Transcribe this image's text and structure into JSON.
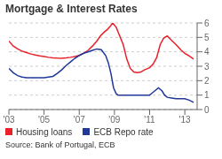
{
  "chart_data": {
    "type": "line",
    "title": "Mortgage & Interest Rates",
    "annotations": [
      "Source: Bank of Portugal, ECB"
    ],
    "xlim": [
      2003,
      2013.7
    ],
    "xticks": [
      {
        "value": 2003,
        "label": "'03"
      },
      {
        "value": 2005,
        "label": "'05"
      },
      {
        "value": 2007,
        "label": "'07"
      },
      {
        "value": 2009,
        "label": "'09"
      },
      {
        "value": 2011,
        "label": "'11"
      },
      {
        "value": 2013,
        "label": "'13"
      }
    ],
    "ylim": [
      0,
      6
    ],
    "yticks": [
      0,
      1,
      2,
      3,
      4,
      5,
      6
    ],
    "grid": true,
    "legend": "bottom",
    "series": [
      {
        "name": "Housing loans",
        "color": "#e8212a",
        "x": [
          2003.0,
          2003.25,
          2003.5,
          2003.75,
          2004.0,
          2004.25,
          2004.5,
          2004.75,
          2005.0,
          2005.25,
          2005.5,
          2005.75,
          2006.0,
          2006.25,
          2006.5,
          2006.75,
          2007.0,
          2007.25,
          2007.5,
          2007.75,
          2008.0,
          2008.2,
          2008.4,
          2008.6,
          2008.75,
          2008.9,
          2009.1,
          2009.3,
          2009.5,
          2009.7,
          2009.9,
          2010.1,
          2010.3,
          2010.5,
          2010.7,
          2011.0,
          2011.2,
          2011.4,
          2011.6,
          2011.8,
          2012.0,
          2012.2,
          2012.5,
          2012.8,
          2013.0,
          2013.2,
          2013.5
        ],
        "values": [
          4.75,
          4.4,
          4.2,
          4.05,
          3.95,
          3.85,
          3.78,
          3.72,
          3.68,
          3.62,
          3.58,
          3.56,
          3.55,
          3.58,
          3.62,
          3.68,
          3.75,
          3.9,
          4.1,
          4.4,
          4.75,
          5.1,
          5.35,
          5.55,
          5.75,
          6.0,
          5.7,
          5.1,
          4.5,
          3.5,
          2.85,
          2.6,
          2.55,
          2.6,
          2.75,
          2.9,
          3.15,
          3.6,
          4.5,
          4.95,
          5.1,
          4.85,
          4.5,
          4.1,
          3.9,
          3.75,
          3.5
        ]
      },
      {
        "name": "ECB Repo rate",
        "color": "#1f3899",
        "x": [
          2003.0,
          2003.25,
          2003.5,
          2003.75,
          2004.0,
          2004.25,
          2004.5,
          2005.0,
          2005.5,
          2005.75,
          2006.0,
          2006.25,
          2006.5,
          2006.75,
          2007.0,
          2007.25,
          2007.5,
          2007.75,
          2008.0,
          2008.25,
          2008.5,
          2008.65,
          2008.8,
          2008.95,
          2009.1,
          2009.2,
          2009.35,
          2009.5,
          2009.75,
          2010.0,
          2010.5,
          2010.75,
          2011.0,
          2011.1,
          2011.3,
          2011.5,
          2011.7,
          2011.85,
          2012.0,
          2012.25,
          2012.5,
          2012.75,
          2013.0,
          2013.25,
          2013.5
        ],
        "values": [
          2.85,
          2.55,
          2.35,
          2.25,
          2.2,
          2.2,
          2.2,
          2.2,
          2.3,
          2.5,
          2.75,
          3.05,
          3.3,
          3.55,
          3.75,
          3.9,
          4.0,
          4.1,
          4.2,
          4.15,
          3.75,
          3.25,
          2.5,
          1.5,
          1.1,
          1.0,
          1.0,
          1.0,
          1.0,
          1.0,
          1.0,
          1.0,
          1.0,
          1.1,
          1.3,
          1.5,
          1.3,
          1.0,
          0.85,
          0.8,
          0.75,
          0.75,
          0.75,
          0.65,
          0.5
        ]
      }
    ]
  }
}
